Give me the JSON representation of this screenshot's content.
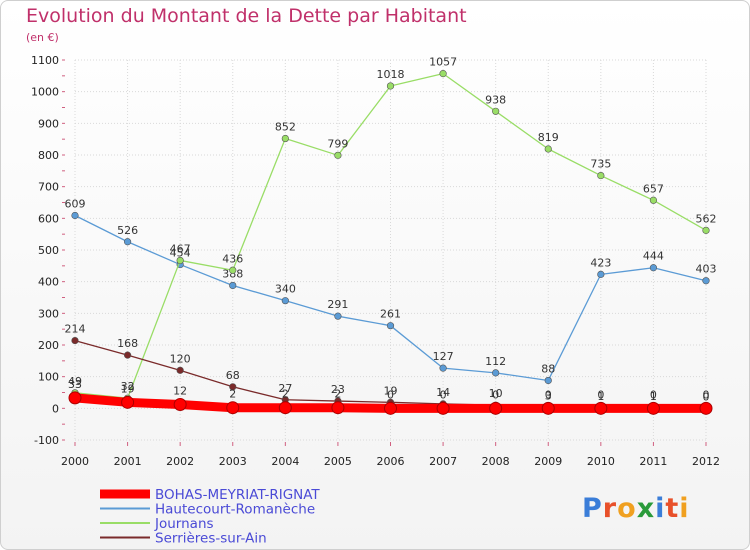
{
  "chart_data": {
    "type": "line",
    "title": "Evolution du Montant de la Dette par Habitant",
    "subtitle": "(en €)",
    "x": [
      "2000",
      "2001",
      "2002",
      "2003",
      "2004",
      "2005",
      "2006",
      "2007",
      "2008",
      "2009",
      "2010",
      "2011",
      "2012"
    ],
    "ylim": [
      -100,
      1100
    ],
    "yticks": [
      -100,
      0,
      100,
      200,
      300,
      400,
      500,
      600,
      700,
      800,
      900,
      1000,
      1100
    ],
    "grid": true,
    "legend_position": "bottom-left",
    "series": [
      {
        "name": "BOHAS-MEYRIAT-RIGNAT",
        "color": "#ff0000",
        "values": [
          33,
          19,
          12,
          2,
          2,
          2,
          0,
          0,
          0,
          0,
          0,
          0,
          0
        ],
        "labels": [
          "33",
          "19",
          "12",
          "2",
          "2",
          "2",
          "0",
          "0",
          "0",
          "0",
          "0",
          "0",
          "0"
        ]
      },
      {
        "name": "Hautecourt-Romanèche",
        "color": "#5b9bd5",
        "values": [
          609,
          526,
          454,
          388,
          340,
          291,
          261,
          127,
          112,
          88,
          423,
          444,
          403
        ],
        "labels": [
          "609",
          "526",
          "454",
          "388",
          "340",
          "291",
          "261",
          "127",
          "112",
          "88",
          "423",
          "444",
          "403"
        ]
      },
      {
        "name": "Journans",
        "color": "#99dd66",
        "values": [
          49,
          32,
          467,
          436,
          852,
          799,
          1018,
          1057,
          938,
          819,
          735,
          657,
          562
        ],
        "labels": [
          "49",
          "32",
          "467",
          "436",
          "852",
          "799",
          "1018",
          "1057",
          "938",
          "819",
          "735",
          "657",
          "562"
        ]
      },
      {
        "name": "Serrières-sur-Ain",
        "color": "#7a2a2a",
        "values": [
          214,
          168,
          120,
          68,
          27,
          23,
          19,
          14,
          10,
          3,
          1,
          1,
          0
        ],
        "labels": [
          "214",
          "168",
          "120",
          "68",
          "27",
          "23",
          "19",
          "14",
          "10",
          "3",
          "1",
          "1",
          "0"
        ]
      }
    ]
  },
  "logo": {
    "text": "Proxiti"
  }
}
